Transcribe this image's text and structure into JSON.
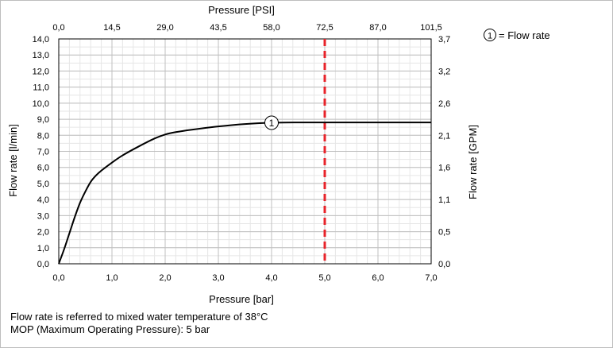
{
  "chart_data": {
    "type": "line",
    "xlabel": "Pressure [bar]",
    "x2label": "Pressure [PSI]",
    "ylabel": "Flow rate [l/min]",
    "y2label": "Flow rate [GPM]",
    "xlim": [
      0,
      7
    ],
    "ylim": [
      0,
      14
    ],
    "x_ticks": [
      "0,0",
      "1,0",
      "2,0",
      "3,0",
      "4,0",
      "5,0",
      "6,0",
      "7,0"
    ],
    "x2_ticks": [
      "0,0",
      "14,5",
      "29,0",
      "43,5",
      "58,0",
      "72,5",
      "87,0",
      "101,5"
    ],
    "y_ticks": [
      "0,0",
      "1,0",
      "2,0",
      "3,0",
      "4,0",
      "5,0",
      "6,0",
      "7,0",
      "8,0",
      "9,0",
      "10,0",
      "11,0",
      "12,0",
      "13,0",
      "14,0"
    ],
    "y2_ticks": [
      "0,0",
      "0,5",
      "1,1",
      "1,6",
      "2,1",
      "2,6",
      "3,2",
      "3,7"
    ],
    "grid": true,
    "series": [
      {
        "name": "Flow rate",
        "marker": "1",
        "x": [
          0,
          0.1,
          0.2,
          0.3,
          0.4,
          0.5,
          0.6,
          0.7,
          0.8,
          1.0,
          1.2,
          1.5,
          1.8,
          2.0,
          2.2,
          2.5,
          3.0,
          3.5,
          4.0,
          4.5,
          5.0,
          6.0,
          7.0
        ],
        "y": [
          0,
          0.9,
          1.9,
          2.9,
          3.8,
          4.5,
          5.1,
          5.5,
          5.8,
          6.3,
          6.75,
          7.3,
          7.8,
          8.05,
          8.2,
          8.35,
          8.55,
          8.7,
          8.78,
          8.8,
          8.8,
          8.8,
          8.8
        ]
      }
    ],
    "reference_line": {
      "x": 5.0,
      "color": "#e8232a",
      "style": "dashed"
    },
    "legend": {
      "marker": "1",
      "label": "= Flow rate",
      "position": "top-right"
    }
  },
  "notes": [
    "Flow rate is referred to mixed water temperature of 38°C",
    "MOP (Maximum Operating Pressure): 5 bar"
  ]
}
